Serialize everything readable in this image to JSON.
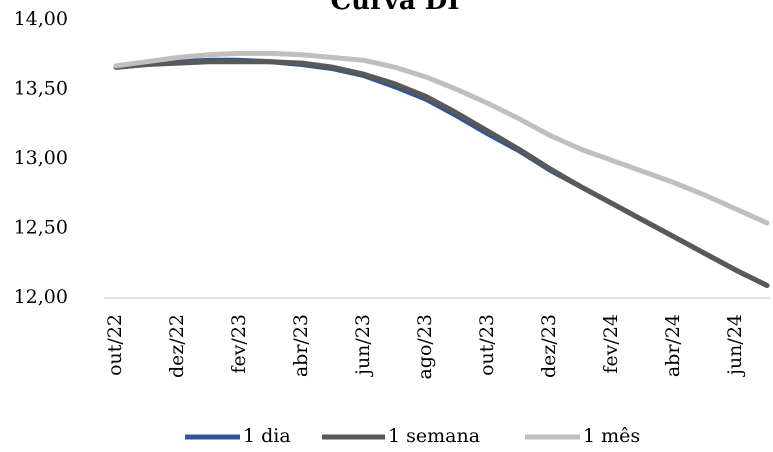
{
  "chart_data": {
    "type": "line",
    "title": "Curva DI",
    "categories": [
      "out/22",
      null,
      "dez/22",
      null,
      "fev/23",
      null,
      "abr/23",
      null,
      "jun/23",
      null,
      "ago/23",
      null,
      "out/23",
      null,
      "dez/23",
      null,
      "fev/24",
      null,
      "abr/24",
      null,
      "jun/24",
      null
    ],
    "series": [
      {
        "name": "1 dia",
        "color": "#2f5597",
        "values": [
          13.66,
          13.68,
          13.7,
          13.71,
          13.71,
          13.7,
          13.68,
          13.65,
          13.6,
          13.52,
          13.43,
          13.31,
          13.18,
          13.06,
          12.92,
          12.8,
          12.68,
          12.56,
          12.44,
          12.32,
          12.2,
          12.09
        ]
      },
      {
        "name": "1 semana",
        "color": "#595959",
        "values": [
          13.66,
          13.68,
          13.69,
          13.7,
          13.7,
          13.7,
          13.69,
          13.66,
          13.61,
          13.54,
          13.45,
          13.33,
          13.2,
          13.07,
          12.93,
          12.8,
          12.68,
          12.56,
          12.44,
          12.32,
          12.2,
          12.09
        ]
      },
      {
        "name": "1 mês",
        "color": "#bfbfbf",
        "values": [
          13.67,
          13.7,
          13.73,
          13.75,
          13.76,
          13.76,
          13.75,
          13.73,
          13.71,
          13.66,
          13.59,
          13.5,
          13.4,
          13.29,
          13.17,
          13.07,
          12.99,
          12.91,
          12.83,
          12.74,
          12.64,
          12.54
        ]
      }
    ],
    "ylim": [
      12,
      14
    ],
    "yticks": [
      {
        "value": 12,
        "label": "12,00"
      },
      {
        "value": 12.5,
        "label": "12,50"
      },
      {
        "value": 13,
        "label": "13,00"
      },
      {
        "value": 13.5,
        "label": "13,50"
      },
      {
        "value": 14,
        "label": "14,00"
      }
    ],
    "grid": false
  }
}
